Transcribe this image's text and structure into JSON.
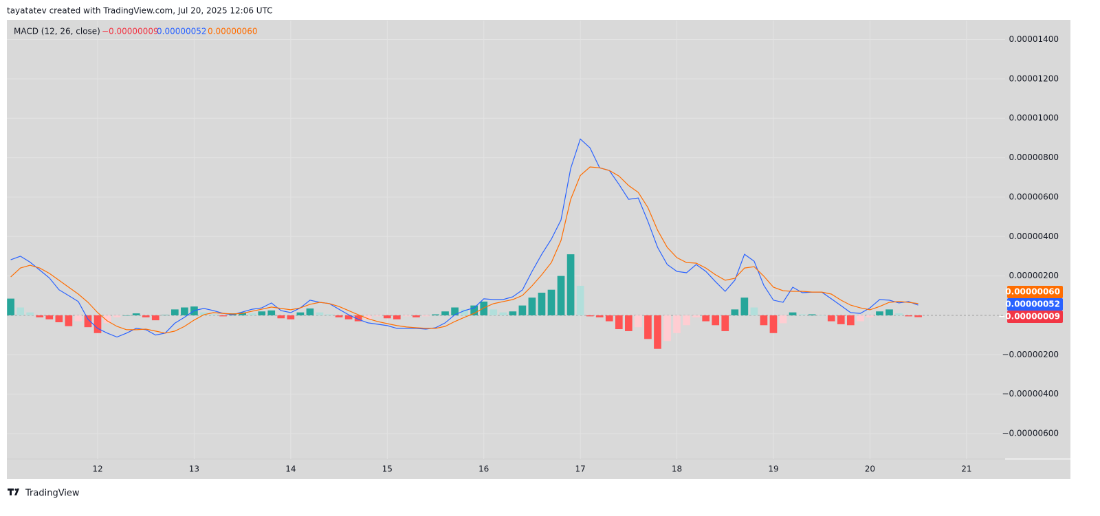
{
  "header": {
    "attribution": "tayatatev created with TradingView.com, Jul 20, 2025 12:06 UTC"
  },
  "footer": {
    "brand": "TradingView"
  },
  "chart_data": {
    "type": "macd",
    "title": "MACD (12, 26, close)",
    "x": [
      11.1,
      11.2,
      11.3,
      11.4,
      11.5,
      11.6,
      11.7,
      11.8,
      11.9,
      12.0,
      12.1,
      12.2,
      12.3,
      12.4,
      12.5,
      12.6,
      12.7,
      12.8,
      12.9,
      13.0,
      13.1,
      13.2,
      13.3,
      13.4,
      13.5,
      13.6,
      13.7,
      13.8,
      13.9,
      14.0,
      14.1,
      14.2,
      14.3,
      14.4,
      14.5,
      14.6,
      14.7,
      14.8,
      14.9,
      15.0,
      15.1,
      15.2,
      15.3,
      15.4,
      15.5,
      15.6,
      15.7,
      15.8,
      15.9,
      16.0,
      16.1,
      16.2,
      16.3,
      16.4,
      16.5,
      16.6,
      16.7,
      16.8,
      16.9,
      17.0,
      17.1,
      17.2,
      17.3,
      17.4,
      17.5,
      17.6,
      17.7,
      17.8,
      17.9,
      18.0,
      18.1,
      18.2,
      18.3,
      18.4,
      18.5,
      18.6,
      18.7,
      18.8,
      18.9,
      19.0,
      19.1,
      19.2,
      19.3,
      19.4,
      19.5,
      19.6,
      19.7,
      19.8,
      19.9,
      20.0,
      20.1,
      20.2,
      20.3,
      20.4,
      20.5
    ],
    "series": [
      {
        "type": "histogram",
        "color": "#f23645",
        "colors": [
          "#26a69a",
          "#b2dfdb",
          "#ff5252",
          "#ffcdd2"
        ],
        "last_label": "−0.00000009",
        "values": [
          8.5e-07,
          4e-07,
          1.5e-07,
          -1e-07,
          -2e-07,
          -3.5e-07,
          -5.5e-07,
          -3e-07,
          -6e-07,
          -9e-07,
          -4e-07,
          -1e-07,
          0,
          1e-07,
          -1e-07,
          -2.5e-07,
          2e-08,
          3e-07,
          4e-07,
          4.5e-07,
          1.5e-07,
          5e-08,
          -5e-08,
          1e-07,
          1.5e-07,
          1e-07,
          2e-07,
          2.5e-07,
          -1.5e-07,
          -2e-07,
          1.5e-07,
          3.5e-07,
          1.5e-07,
          5e-08,
          -1e-07,
          -2e-07,
          -3e-07,
          -2e-07,
          -5e-08,
          -1.5e-07,
          -2e-07,
          -5e-08,
          -1e-07,
          -5e-08,
          5e-08,
          2e-07,
          4e-07,
          3e-07,
          5e-07,
          7e-07,
          3e-07,
          1.5e-07,
          2e-07,
          5e-07,
          9e-07,
          1.15e-06,
          1.3e-06,
          2e-06,
          3.1e-06,
          1.5e-06,
          -5e-08,
          -1e-07,
          -3e-07,
          -7e-07,
          -8e-07,
          -6e-07,
          -1.2e-06,
          -1.7e-06,
          -1.3e-06,
          -9e-07,
          -5e-07,
          -1e-07,
          -3e-07,
          -5e-07,
          -8e-07,
          3e-07,
          9e-07,
          4e-07,
          -5e-07,
          -9e-07,
          -4e-07,
          1.5e-07,
          5e-08,
          5e-08,
          0,
          -3e-07,
          -4.5e-07,
          -5e-07,
          -3e-07,
          -1e-07,
          2e-07,
          3e-07,
          1e-07,
          -5e-08,
          -9e-08
        ]
      },
      {
        "type": "line",
        "color": "#2962ff",
        "last_label": "0.00000052",
        "values": [
          2.82e-06,
          3e-06,
          2.7e-06,
          2.3e-06,
          1.9e-06,
          1.3e-06,
          1e-06,
          7e-07,
          -2e-07,
          -6.6e-07,
          -9e-07,
          -1.1e-06,
          -9e-07,
          -6.6e-07,
          -7.3e-07,
          -1e-06,
          -9e-07,
          -4e-07,
          -1e-07,
          2.4e-07,
          3.5e-07,
          2.4e-07,
          1e-07,
          3e-08,
          1.7e-07,
          3.1e-07,
          3.8e-07,
          6.3e-07,
          2.4e-07,
          1.4e-07,
          3.8e-07,
          7.7e-07,
          6.6e-07,
          6e-07,
          3.1e-07,
          3e-08,
          -2e-07,
          -3.8e-07,
          -4.5e-07,
          -5.2e-07,
          -6.6e-07,
          -6.6e-07,
          -6.6e-07,
          -7e-07,
          -6.3e-07,
          -3.8e-07,
          3e-08,
          2.4e-07,
          3.8e-07,
          8.4e-07,
          8e-07,
          8e-07,
          9.4e-07,
          1.29e-06,
          2.23e-06,
          3.1e-06,
          3.87e-06,
          4.84e-06,
          7.46e-06,
          8.95e-06,
          8.5e-06,
          7.49e-06,
          7.35e-06,
          6.65e-06,
          5.89e-06,
          5.96e-06,
          4.77e-06,
          3.45e-06,
          2.58e-06,
          2.23e-06,
          2.16e-06,
          2.58e-06,
          2.23e-06,
          1.71e-06,
          1.22e-06,
          1.78e-06,
          3.1e-06,
          2.75e-06,
          1.53e-06,
          7.7e-07,
          6.6e-07,
          1.43e-06,
          1.15e-06,
          1.18e-06,
          1.18e-06,
          8.4e-07,
          4.9e-07,
          1.4e-07,
          1e-07,
          3.8e-07,
          8e-07,
          7.7e-07,
          6.3e-07,
          7e-07,
          5.2e-07
        ]
      },
      {
        "type": "line",
        "color": "#ff6d00",
        "last_label": "0.00000060",
        "values": [
          1.95e-06,
          2.4e-06,
          2.54e-06,
          2.4e-06,
          2.13e-06,
          1.78e-06,
          1.43e-06,
          1.08e-06,
          6.6e-07,
          1.4e-07,
          -2.8e-07,
          -5.6e-07,
          -7.3e-07,
          -7.3e-07,
          -7e-07,
          -8e-07,
          -9e-07,
          -8e-07,
          -5.6e-07,
          -2.4e-07,
          3e-08,
          1.4e-07,
          1e-07,
          7e-08,
          1e-07,
          2.1e-07,
          3.1e-07,
          4.2e-07,
          3.5e-07,
          2.8e-07,
          3.8e-07,
          5.6e-07,
          6.6e-07,
          6e-07,
          4.5e-07,
          2.4e-07,
          3e-08,
          -1.7e-07,
          -3.1e-07,
          -4.2e-07,
          -5.2e-07,
          -5.9e-07,
          -6.3e-07,
          -6.6e-07,
          -6.6e-07,
          -5.6e-07,
          -3.1e-07,
          -1e-07,
          1e-07,
          3.8e-07,
          5.9e-07,
          7e-07,
          8e-07,
          1.01e-06,
          1.5e-06,
          2.06e-06,
          2.68e-06,
          3.8e-06,
          5.89e-06,
          7.1e-06,
          7.53e-06,
          7.49e-06,
          7.35e-06,
          7.07e-06,
          6.59e-06,
          6.24e-06,
          5.47e-06,
          4.32e-06,
          3.45e-06,
          2.93e-06,
          2.68e-06,
          2.65e-06,
          2.4e-06,
          2.06e-06,
          1.78e-06,
          1.88e-06,
          2.4e-06,
          2.47e-06,
          1.99e-06,
          1.43e-06,
          1.25e-06,
          1.22e-06,
          1.22e-06,
          1.18e-06,
          1.18e-06,
          1.08e-06,
          7.7e-07,
          5.2e-07,
          3.8e-07,
          2.8e-07,
          4.5e-07,
          6.6e-07,
          7e-07,
          6.6e-07,
          6e-07
        ]
      }
    ],
    "xlim": [
      11.06,
      21.4
    ],
    "xticks": [
      12,
      13,
      14,
      15,
      16,
      17,
      18,
      19,
      20,
      21
    ],
    "ylim": [
      -7.29e-06,
      1.496e-05
    ],
    "yticks": [
      {
        "value": 1.4e-05,
        "label": "0.00001400"
      },
      {
        "value": 1.2e-05,
        "label": "0.00001200"
      },
      {
        "value": 1e-05,
        "label": "0.00001000"
      },
      {
        "value": 8e-06,
        "label": "0.00000800"
      },
      {
        "value": 6e-06,
        "label": "0.00000600"
      },
      {
        "value": 4e-06,
        "label": "0.00000400"
      },
      {
        "value": 2e-06,
        "label": "0.00000200"
      },
      {
        "value": -2e-06,
        "label": "−0.00000200"
      },
      {
        "value": -4e-06,
        "label": "−0.00000400"
      },
      {
        "value": -6e-06,
        "label": "−0.00000600"
      }
    ],
    "grid": true
  }
}
